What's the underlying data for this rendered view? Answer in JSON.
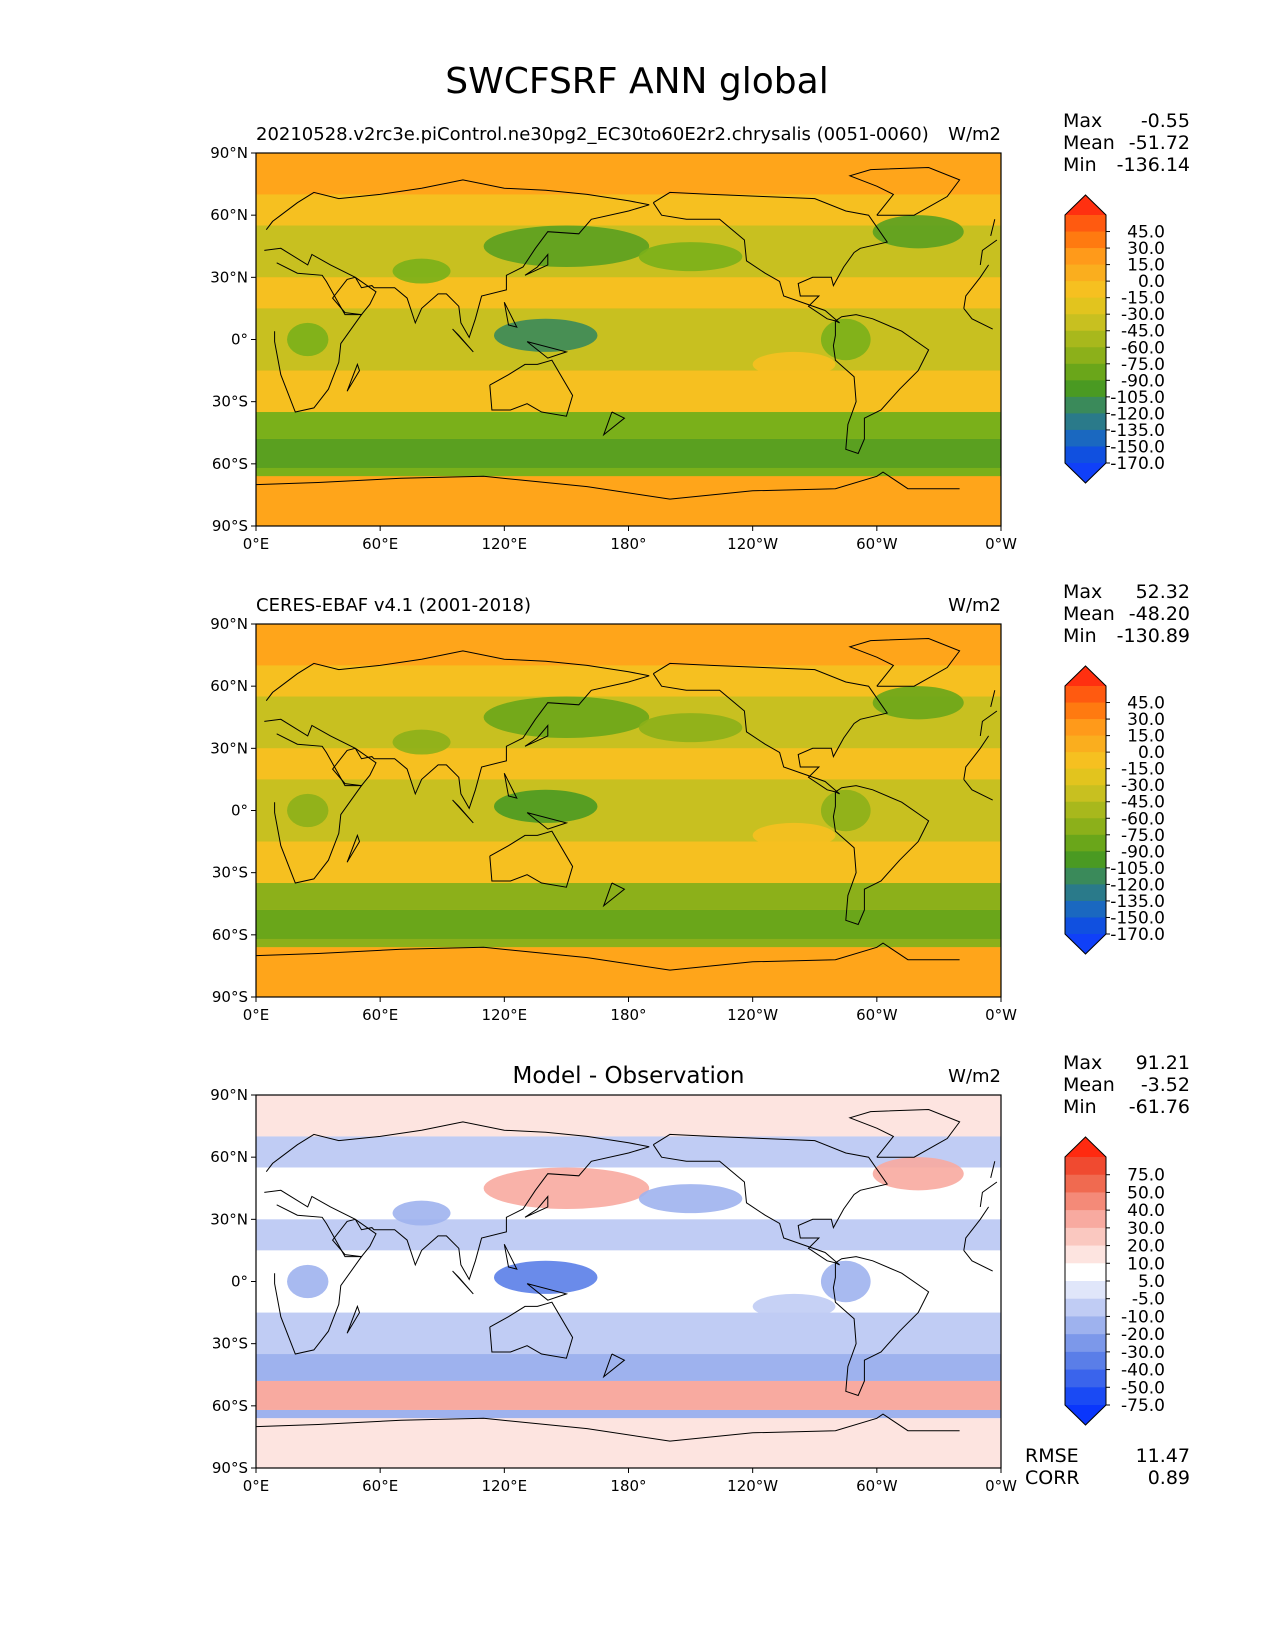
{
  "figure": {
    "title": "SWCFSRF ANN global"
  },
  "chart_data": [
    {
      "type": "heatmap",
      "panel": "test",
      "title_left": "20210528.v2rc3e.piControl.ne30pg2_EC30to60E2r2.chrysalis (0051-0060)",
      "title_center": "",
      "units": "W/m2",
      "stats": [
        {
          "label": "Max",
          "value": "-0.55"
        },
        {
          "label": "Mean",
          "value": "-51.72"
        },
        {
          "label": "Min",
          "value": "-136.14"
        }
      ],
      "extra_stats": [],
      "xticks": [
        "0°E",
        "60°E",
        "120°E",
        "180°",
        "120°W",
        "60°W",
        "0°W"
      ],
      "yticks": [
        "90°N",
        "60°N",
        "30°N",
        "0°",
        "30°S",
        "60°S",
        "90°S"
      ],
      "colorbar": {
        "labels": [
          "45.0",
          "30.0",
          "15.0",
          "0.0",
          "-15.0",
          "-30.0",
          "-45.0",
          "-60.0",
          "-75.0",
          "-90.0",
          "-105.0",
          "-120.0",
          "-135.0",
          "-150.0",
          "-170.0"
        ],
        "colors": [
          "#ff3010",
          "#ff5a10",
          "#ff7a10",
          "#ff9a1a",
          "#faae1e",
          "#f6c020",
          "#e2c41e",
          "#c8c020",
          "#a8b81c",
          "#8cb01a",
          "#6aa61a",
          "#4a9a22",
          "#3a8a5a",
          "#2a7a8a",
          "#1a68c0",
          "#1050e0",
          "#1040f8"
        ]
      },
      "field_colors": {
        "background": "#faae1e",
        "polar": "#ffa51a",
        "midlat": "#f6c020",
        "subtropic": "#c8c020",
        "storm": "#7ab01a",
        "green": "#5aa020",
        "deep": "#3a8a5a"
      }
    },
    {
      "type": "heatmap",
      "panel": "reference",
      "title_left": "CERES-EBAF v4.1 (2001-2018)",
      "title_center": "",
      "units": "W/m2",
      "stats": [
        {
          "label": "Max",
          "value": "52.32"
        },
        {
          "label": "Mean",
          "value": "-48.20"
        },
        {
          "label": "Min",
          "value": "-130.89"
        }
      ],
      "extra_stats": [],
      "xticks": [
        "0°E",
        "60°E",
        "120°E",
        "180°",
        "120°W",
        "60°W",
        "0°W"
      ],
      "yticks": [
        "90°N",
        "60°N",
        "30°N",
        "0°",
        "30°S",
        "60°S",
        "90°S"
      ],
      "colorbar": {
        "labels": [
          "45.0",
          "30.0",
          "15.0",
          "0.0",
          "-15.0",
          "-30.0",
          "-45.0",
          "-60.0",
          "-75.0",
          "-90.0",
          "-105.0",
          "-120.0",
          "-135.0",
          "-150.0",
          "-170.0"
        ],
        "colors": [
          "#ff3010",
          "#ff5a10",
          "#ff7a10",
          "#ff9a1a",
          "#faae1e",
          "#f6c020",
          "#e2c41e",
          "#c8c020",
          "#a8b81c",
          "#8cb01a",
          "#6aa61a",
          "#4a9a22",
          "#3a8a5a",
          "#2a7a8a",
          "#1a68c0",
          "#1050e0",
          "#1040f8"
        ]
      },
      "field_colors": {
        "background": "#f6c020",
        "polar": "#ffa51a",
        "midlat": "#f6c020",
        "subtropic": "#c8c020",
        "storm": "#8cb01a",
        "green": "#6aa61a",
        "deep": "#4a9a22"
      }
    },
    {
      "type": "heatmap",
      "panel": "difference",
      "title_left": "",
      "title_center": "Model - Observation",
      "units": "W/m2",
      "stats": [
        {
          "label": "Max",
          "value": "91.21"
        },
        {
          "label": "Mean",
          "value": "-3.52"
        },
        {
          "label": "Min",
          "value": "-61.76"
        }
      ],
      "extra_stats": [
        {
          "label": "RMSE",
          "value": "11.47"
        },
        {
          "label": "CORR",
          "value": "0.89"
        }
      ],
      "xticks": [
        "0°E",
        "60°E",
        "120°E",
        "180°",
        "120°W",
        "60°W",
        "0°W"
      ],
      "yticks": [
        "90°N",
        "60°N",
        "30°N",
        "0°",
        "30°S",
        "60°S",
        "90°S"
      ],
      "colorbar": {
        "labels": [
          "75.0",
          "50.0",
          "40.0",
          "30.0",
          "20.0",
          "10.0",
          "5.0",
          "-5.0",
          "-10.0",
          "-20.0",
          "-30.0",
          "-40.0",
          "-50.0",
          "-75.0"
        ],
        "colors": [
          "#ff2a10",
          "#f04a30",
          "#f06a50",
          "#f48a78",
          "#f8aaa0",
          "#fac8c0",
          "#fde4e0",
          "#ffffff",
          "#e0e6fa",
          "#c0ccf4",
          "#9eb2ee",
          "#7c98ea",
          "#5a7ee8",
          "#3a64ec",
          "#1a4af4",
          "#0a36fc"
        ]
      },
      "field_colors": {
        "background": "#ffffff",
        "polar": "#fde4e0",
        "midlat": "#c0ccf4",
        "subtropic": "#ffffff",
        "storm": "#9eb2ee",
        "green": "#f8aaa0",
        "deep": "#5a7ee8"
      }
    }
  ]
}
